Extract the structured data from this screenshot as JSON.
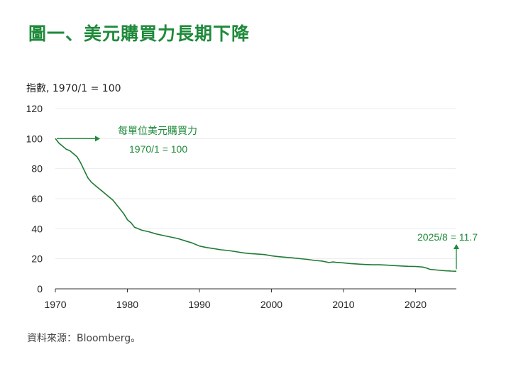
{
  "title": "圖一、美元購買力長期下降",
  "source": "資料來源：Bloomberg。",
  "chart_data": {
    "type": "line",
    "title": "圖一、美元購買力長期下降",
    "ylabel": "指數, 1970/1 = 100",
    "xlabel": "",
    "xlim": [
      1970,
      2025.67
    ],
    "ylim": [
      0,
      120
    ],
    "xticks": [
      1970,
      1980,
      1990,
      2000,
      2010,
      2020
    ],
    "yticks": [
      0,
      20,
      40,
      60,
      80,
      100,
      120
    ],
    "grid": "horizontal",
    "line_color": "#1e7a34",
    "series": [
      {
        "name": "每單位美元購買力",
        "x": [
          1970,
          1970.5,
          1971,
          1971.5,
          1972,
          1972.5,
          1973,
          1973.5,
          1974,
          1974.5,
          1975,
          1975.5,
          1976,
          1976.5,
          1977,
          1977.5,
          1978,
          1978.5,
          1979,
          1979.5,
          1980,
          1980.5,
          1981,
          1981.5,
          1982,
          1982.5,
          1983,
          1984,
          1985,
          1986,
          1987,
          1988,
          1989,
          1990,
          1991,
          1992,
          1993,
          1994,
          1995,
          1996,
          1997,
          1998,
          1999,
          2000,
          2001,
          2002,
          2003,
          2004,
          2005,
          2006,
          2007,
          2008,
          2008.5,
          2009,
          2010,
          2011,
          2012,
          2013,
          2014,
          2015,
          2016,
          2017,
          2018,
          2019,
          2020,
          2021,
          2021.5,
          2022,
          2023,
          2024,
          2025,
          2025.67
        ],
        "values": [
          100,
          97,
          95,
          93,
          92,
          90,
          88,
          84,
          79,
          74,
          71,
          69,
          67,
          65,
          63,
          61,
          59,
          56,
          53,
          50,
          46,
          44,
          41,
          40,
          39,
          38.5,
          38,
          36.5,
          35.5,
          34.5,
          33.5,
          32,
          30.5,
          28.5,
          27.5,
          26.8,
          26,
          25.5,
          24.8,
          24,
          23.5,
          23.2,
          22.8,
          22,
          21.4,
          21,
          20.6,
          20.1,
          19.6,
          18.9,
          18.5,
          17.5,
          17.9,
          17.6,
          17.3,
          16.8,
          16.5,
          16.2,
          16,
          16,
          15.8,
          15.5,
          15.2,
          15,
          14.9,
          14.5,
          13.9,
          13,
          12.5,
          12.1,
          11.8,
          11.7
        ]
      }
    ],
    "annotations": [
      {
        "text": "每單位美元購買力",
        "x": 1970,
        "y": 100
      },
      {
        "text": "1970/1 = 100",
        "x": 1970,
        "y": 100
      },
      {
        "text": "2025/8 = 11.7",
        "x": 2025.67,
        "y": 11.7
      }
    ]
  }
}
